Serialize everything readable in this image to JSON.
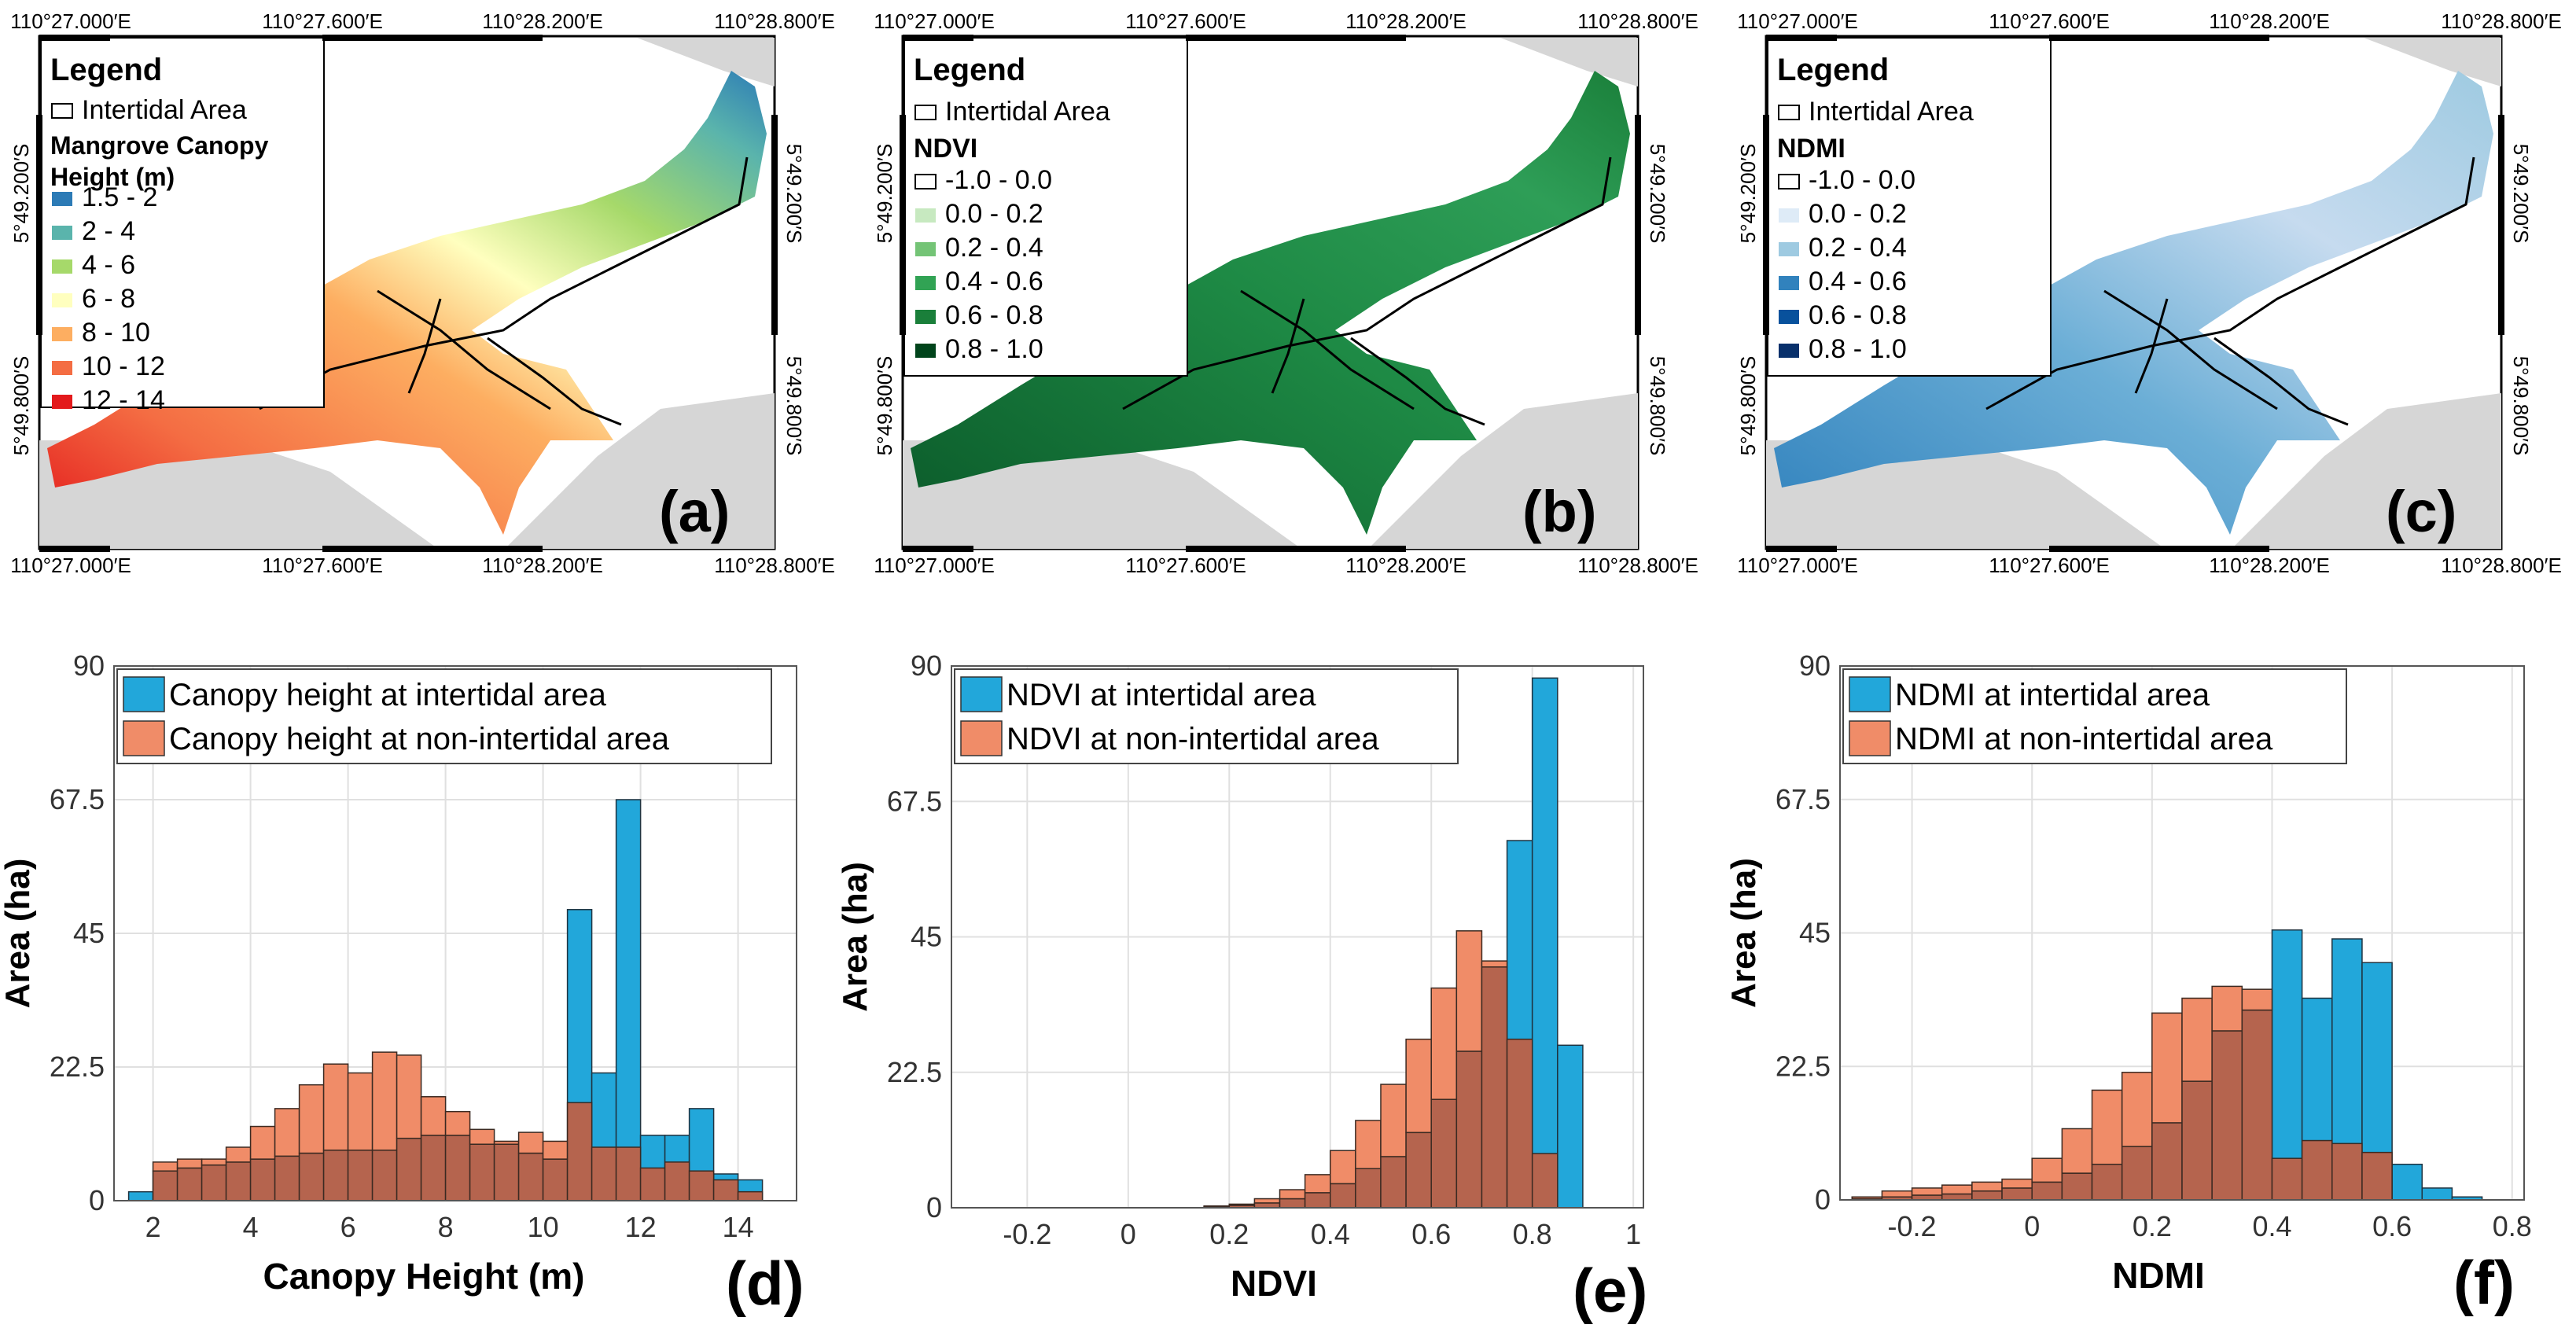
{
  "colors": {
    "intertidal": "#22a7da",
    "non_intertidal": "#f08c68",
    "overlap": "#b5644e",
    "land": "#d6d6d6",
    "frame": "#000000",
    "grid": "#e0e0e0"
  },
  "maps": [
    {
      "panel_label": "(a)",
      "legend_title": "Legend",
      "area_item": "Intertidal Area",
      "var_title_lines": [
        "Mangrove Canopy",
        "Height (m)"
      ],
      "classes": [
        "1.5 - 2",
        "2 - 4",
        "4 - 6",
        "6 - 8",
        "8 - 10",
        "10 - 12",
        "12 - 14"
      ],
      "class_colors": [
        "#2c7bb6",
        "#5ab4ac",
        "#a6d96a",
        "#ffffbf",
        "#fdae61",
        "#f46d43",
        "#e31a1c"
      ],
      "lon_ticks": [
        "110°27.000′E",
        "110°27.600′E",
        "110°28.200′E",
        "110°28.800′E"
      ],
      "lat_ticks": [
        "5°49.200′S",
        "5°49.800′S"
      ]
    },
    {
      "panel_label": "(b)",
      "legend_title": "Legend",
      "area_item": "Intertidal Area",
      "var_title_lines": [
        "NDVI"
      ],
      "classes": [
        "-1.0 - 0.0",
        "0.0 - 0.2",
        "0.2 - 0.4",
        "0.4 - 0.6",
        "0.6 - 0.8",
        "0.8 - 1.0"
      ],
      "class_colors": [
        "#ffffff",
        "#c7e9c0",
        "#74c476",
        "#31a354",
        "#1a7f3a",
        "#00441b"
      ],
      "lon_ticks": [
        "110°27.000′E",
        "110°27.600′E",
        "110°28.200′E",
        "110°28.800′E"
      ],
      "lat_ticks": [
        "5°49.200′S",
        "5°49.800′S"
      ]
    },
    {
      "panel_label": "(c)",
      "legend_title": "Legend",
      "area_item": "Intertidal Area",
      "var_title_lines": [
        "NDMI"
      ],
      "classes": [
        "-1.0 - 0.0",
        "0.0 - 0.2",
        "0.2 - 0.4",
        "0.4 - 0.6",
        "0.6 - 0.8",
        "0.8 - 1.0"
      ],
      "class_colors": [
        "#ffffff",
        "#deebf7",
        "#9ecae1",
        "#3182bd",
        "#08519c",
        "#08306b"
      ],
      "lon_ticks": [
        "110°27.000′E",
        "110°27.600′E",
        "110°28.200′E",
        "110°28.800′E"
      ],
      "lat_ticks": [
        "5°49.200′S",
        "5°49.800′S"
      ]
    }
  ],
  "chart_data": [
    {
      "type": "bar",
      "panel_label": "(d)",
      "xlabel": "Canopy Height (m)",
      "ylabel": "Area (ha)",
      "xlim": [
        1.2,
        15.2
      ],
      "ylim": [
        0,
        90
      ],
      "xticks": [
        2,
        4,
        6,
        8,
        10,
        12,
        14
      ],
      "yticks": [
        0,
        22.5,
        45,
        67.5,
        90
      ],
      "ytick_labels": [
        "0",
        "22.5",
        "45",
        "67.5",
        "90"
      ],
      "xtick_labels": [
        "2",
        "4",
        "6",
        "8",
        "10",
        "12",
        "14"
      ],
      "grid": true,
      "legend_position": "top-left",
      "bin_edges": [
        1.5,
        2,
        2.5,
        3,
        3.5,
        4,
        4.5,
        5,
        5.5,
        6,
        6.5,
        7,
        7.5,
        8,
        8.5,
        9,
        9.5,
        10,
        10.5,
        11,
        11.5,
        12,
        12.5,
        13,
        13.5,
        14,
        14.5
      ],
      "series": [
        {
          "name": "Canopy height at intertidal area",
          "values": [
            1.5,
            5,
            5.5,
            6,
            6.5,
            7,
            7.5,
            8,
            8.5,
            8.5,
            8.5,
            10.5,
            11,
            11,
            9.5,
            9.5,
            8,
            7,
            49,
            21.5,
            67.5,
            11,
            11,
            15.5,
            4.5,
            3.5
          ]
        },
        {
          "name": "Canopy height at non-intertidal area",
          "values": [
            0,
            6.5,
            7,
            7,
            9,
            12.5,
            15.5,
            19.5,
            23,
            21.5,
            25,
            24.5,
            17.5,
            15,
            12,
            10,
            11.5,
            10,
            16.5,
            9,
            9,
            5.5,
            6.5,
            5,
            3.5,
            1.5
          ]
        }
      ]
    },
    {
      "type": "bar",
      "panel_label": "(e)",
      "xlabel": "NDVI",
      "ylabel": "Area (ha)",
      "xlim": [
        -0.35,
        1.02
      ],
      "ylim": [
        0,
        90
      ],
      "xticks": [
        -0.2,
        0,
        0.2,
        0.4,
        0.6,
        0.8,
        1
      ],
      "xtick_labels": [
        "-0.2",
        "0",
        "0.2",
        "0.4",
        "0.6",
        "0.8",
        "1"
      ],
      "yticks": [
        0,
        22.5,
        45,
        67.5,
        90
      ],
      "ytick_labels": [
        "0",
        "22.5",
        "45",
        "67.5",
        "90"
      ],
      "grid": true,
      "legend_position": "top-left",
      "bin_edges": [
        0.15,
        0.2,
        0.25,
        0.3,
        0.35,
        0.4,
        0.45,
        0.5,
        0.55,
        0.6,
        0.65,
        0.7,
        0.75,
        0.8,
        0.85,
        0.9
      ],
      "series": [
        {
          "name": "NDVI at intertidal area",
          "values": [
            0.2,
            0.4,
            0.8,
            1.5,
            2.5,
            4,
            6.5,
            8.5,
            12.5,
            18,
            26,
            40,
            61,
            88,
            27
          ]
        },
        {
          "name": "NDVI at non-intertidal area",
          "values": [
            0.3,
            0.6,
            1.5,
            3,
            5.5,
            9.5,
            14.5,
            20.5,
            28,
            36.5,
            46,
            41,
            28,
            9,
            0
          ]
        }
      ]
    },
    {
      "type": "bar",
      "panel_label": "(f)",
      "xlabel": "NDMI",
      "ylabel": "Area (ha)",
      "xlim": [
        -0.32,
        0.82
      ],
      "ylim": [
        0,
        90
      ],
      "xticks": [
        -0.2,
        0,
        0.2,
        0.4,
        0.6,
        0.8
      ],
      "xtick_labels": [
        "-0.2",
        "0",
        "0.2",
        "0.4",
        "0.6",
        "0.8"
      ],
      "yticks": [
        0,
        22.5,
        45,
        67.5,
        90
      ],
      "ytick_labels": [
        "0",
        "22.5",
        "45",
        "67.5",
        "90"
      ],
      "grid": true,
      "legend_position": "top-left",
      "bin_edges": [
        -0.3,
        -0.25,
        -0.2,
        -0.15,
        -0.1,
        -0.05,
        0,
        0.05,
        0.1,
        0.15,
        0.2,
        0.25,
        0.3,
        0.35,
        0.4,
        0.45,
        0.5,
        0.55,
        0.6,
        0.65,
        0.7,
        0.75
      ],
      "series": [
        {
          "name": "NDMI at intertidal area",
          "values": [
            0.2,
            0.5,
            0.8,
            1,
            1.5,
            2,
            3,
            4.5,
            6,
            9,
            13,
            20,
            28.5,
            32,
            45.5,
            34,
            44,
            40,
            6,
            2,
            0.5
          ]
        },
        {
          "name": "NDMI at non-intertidal area",
          "values": [
            0.5,
            1.5,
            2,
            2.5,
            3,
            3.5,
            7,
            12,
            18.5,
            21.5,
            31.5,
            34,
            36,
            35.5,
            7,
            10,
            9.5,
            8,
            0,
            0,
            0
          ]
        }
      ]
    }
  ]
}
